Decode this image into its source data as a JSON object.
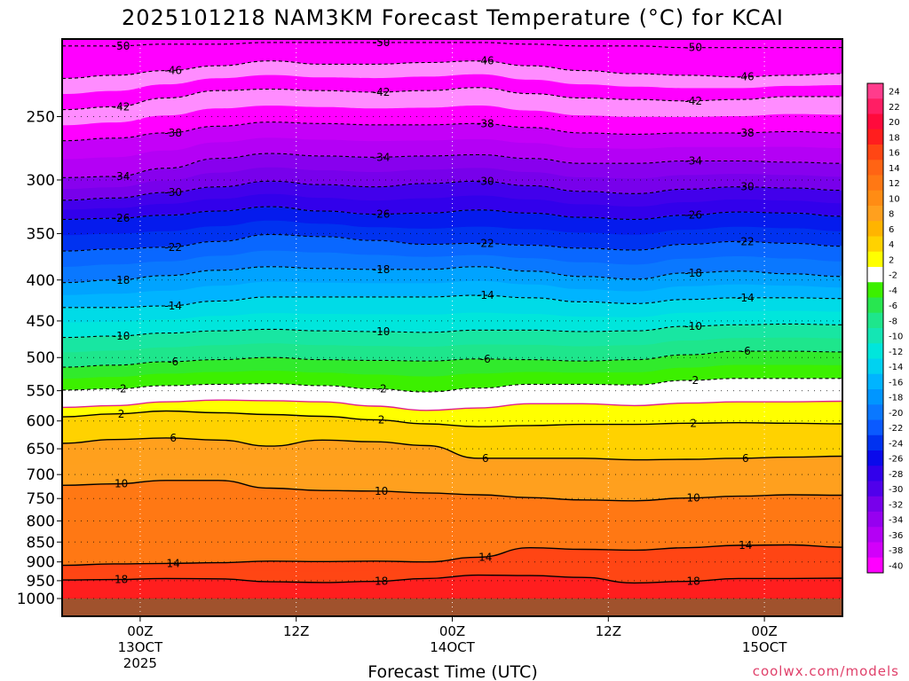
{
  "chart_data": {
    "type": "heatmap",
    "title": "2025101218 NAM3KM Forecast Temperature (°C) for KCAI",
    "xlabel": "Forecast Time (UTC)",
    "ylabel": "",
    "credit": "coolwx.com/models",
    "x_unit": "forecast hour",
    "xlim": [
      0,
      60
    ],
    "ylim_hpa": [
      1000,
      200
    ],
    "x_ticks": [
      {
        "hour": 6,
        "label": "00Z",
        "date1": "13OCT",
        "date2": "2025"
      },
      {
        "hour": 18,
        "label": "12Z",
        "date1": "",
        "date2": ""
      },
      {
        "hour": 30,
        "label": "00Z",
        "date1": "14OCT",
        "date2": ""
      },
      {
        "hour": 42,
        "label": "12Z",
        "date1": "",
        "date2": ""
      },
      {
        "hour": 54,
        "label": "00Z",
        "date1": "15OCT",
        "date2": ""
      }
    ],
    "y_ticks": [
      250,
      300,
      350,
      400,
      450,
      500,
      550,
      600,
      650,
      700,
      750,
      800,
      850,
      900,
      950,
      1000
    ],
    "colorbar": {
      "levels": [
        24,
        22,
        20,
        18,
        16,
        14,
        12,
        10,
        8,
        6,
        4,
        2,
        -2,
        -4,
        -6,
        -8,
        -10,
        -12,
        -14,
        -16,
        -18,
        -20,
        -22,
        -24,
        -26,
        -28,
        -30,
        -32,
        -34,
        -36,
        -38,
        -40
      ],
      "labels": [
        "24",
        "22",
        "20",
        "18",
        "16",
        "14",
        "12",
        "10",
        "8",
        "6",
        "4",
        "2",
        "-2",
        "-4",
        "-6",
        "-8",
        "-10",
        "-12",
        "-14",
        "-16",
        "-18",
        "-20",
        "-22",
        "-24",
        "-26",
        "-28",
        "-30",
        "-32",
        "-34",
        "-36",
        "-38",
        "-40"
      ],
      "colors": [
        "#ff3c8c",
        "#ff1e64",
        "#ff0a3c",
        "#ff1e1e",
        "#ff4614",
        "#ff6414",
        "#ff7814",
        "#ff8c14",
        "#ffa01e",
        "#ffb400",
        "#ffd200",
        "#ffff00",
        "#ffffff",
        "#3cf000",
        "#28e650",
        "#1ee68c",
        "#14e6b4",
        "#00e6dc",
        "#00d2f0",
        "#00b4ff",
        "#0096ff",
        "#0a78ff",
        "#0a5aff",
        "#0032f0",
        "#0a0aeb",
        "#3200eb",
        "#5000eb",
        "#7800eb",
        "#9600f0",
        "#b400f5",
        "#d200fa",
        "#ff00ff"
      ]
    },
    "dashed_contours": [
      {
        "value": -50,
        "label": "-50",
        "levels_hpa": [
          204,
          204,
          203,
          203,
          202,
          202,
          202,
          202,
          202,
          203,
          204,
          204,
          205,
          205,
          205,
          205
        ]
      },
      {
        "value": -46,
        "label": "-46",
        "levels_hpa": [
          224,
          222,
          219,
          216,
          213,
          215,
          215,
          214,
          213,
          216,
          219,
          221,
          222,
          223,
          222,
          221
        ]
      },
      {
        "value": -42,
        "label": "-42",
        "levels_hpa": [
          245,
          243,
          237,
          232,
          231,
          232,
          233,
          232,
          230,
          234,
          237,
          238,
          239,
          238,
          236,
          236
        ]
      },
      {
        "value": -38,
        "label": "-38",
        "levels_hpa": [
          268,
          266,
          262,
          257,
          254,
          255,
          256,
          256,
          255,
          258,
          262,
          263,
          262,
          262,
          261,
          262
        ]
      },
      {
        "value": -34,
        "label": "-34",
        "levels_hpa": [
          298,
          297,
          290,
          282,
          278,
          280,
          281,
          280,
          279,
          282,
          286,
          286,
          284,
          284,
          285,
          286
        ]
      },
      {
        "value": -30,
        "label": "-30",
        "levels_hpa": [
          318,
          316,
          311,
          306,
          301,
          304,
          306,
          303,
          301,
          305,
          310,
          312,
          308,
          306,
          307,
          309
        ]
      },
      {
        "value": -26,
        "label": "-26",
        "levels_hpa": [
          336,
          335,
          332,
          328,
          324,
          328,
          331,
          330,
          327,
          330,
          334,
          336,
          332,
          329,
          330,
          333
        ]
      },
      {
        "value": -22,
        "label": "-22",
        "levels_hpa": [
          368,
          366,
          364,
          358,
          351,
          353,
          357,
          361,
          360,
          362,
          365,
          367,
          361,
          358,
          360,
          363
        ]
      },
      {
        "value": -18,
        "label": "-18",
        "levels_hpa": [
          403,
          400,
          395,
          389,
          385,
          387,
          388,
          388,
          385,
          390,
          396,
          399,
          392,
          390,
          393,
          396
        ]
      },
      {
        "value": -14,
        "label": "-14",
        "levels_hpa": [
          433,
          433,
          431,
          425,
          420,
          420,
          420,
          420,
          418,
          421,
          426,
          428,
          423,
          421,
          421,
          422
        ]
      },
      {
        "value": -10,
        "label": "-10",
        "levels_hpa": [
          472,
          470,
          466,
          463,
          461,
          463,
          464,
          465,
          462,
          462,
          464,
          463,
          457,
          455,
          454,
          455
        ]
      },
      {
        "value": -6,
        "label": "-6",
        "levels_hpa": [
          514,
          511,
          506,
          503,
          500,
          503,
          504,
          505,
          502,
          503,
          505,
          503,
          496,
          491,
          491,
          492
        ]
      },
      {
        "value": -2,
        "label": "-2",
        "levels_hpa": [
          549,
          547,
          542,
          540,
          539,
          542,
          547,
          552,
          546,
          540,
          540,
          541,
          534,
          531,
          531,
          531
        ]
      }
    ],
    "zero_contour": {
      "value": 0,
      "levels_hpa": [
        577,
        574,
        568,
        565,
        566,
        568,
        575,
        582,
        578,
        571,
        571,
        574,
        570,
        568,
        568,
        567
      ]
    },
    "solid_contours": [
      {
        "value": 2,
        "label": "2",
        "levels_hpa": [
          593,
          588,
          583,
          586,
          589,
          592,
          598,
          605,
          610,
          608,
          606,
          606,
          604,
          603,
          604,
          605
        ]
      },
      {
        "value": 6,
        "label": "6",
        "levels_hpa": [
          640,
          633,
          630,
          634,
          645,
          634,
          637,
          644,
          668,
          668,
          668,
          671,
          670,
          668,
          666,
          664
        ]
      },
      {
        "value": 10,
        "label": "10",
        "levels_hpa": [
          722,
          719,
          712,
          712,
          728,
          733,
          734,
          738,
          742,
          748,
          753,
          755,
          749,
          745,
          742,
          743
        ]
      },
      {
        "value": 14,
        "label": "14",
        "levels_hpa": [
          909,
          905,
          904,
          902,
          898,
          899,
          898,
          900,
          888,
          864,
          868,
          870,
          864,
          858,
          857,
          863
        ]
      },
      {
        "value": 18,
        "label": "18",
        "levels_hpa": [
          948,
          947,
          944,
          945,
          953,
          955,
          952,
          944,
          935,
          936,
          941,
          956,
          952,
          944,
          944,
          943
        ]
      }
    ],
    "terrain": {
      "color": "#a0522d",
      "top_hpa": 1000
    }
  }
}
